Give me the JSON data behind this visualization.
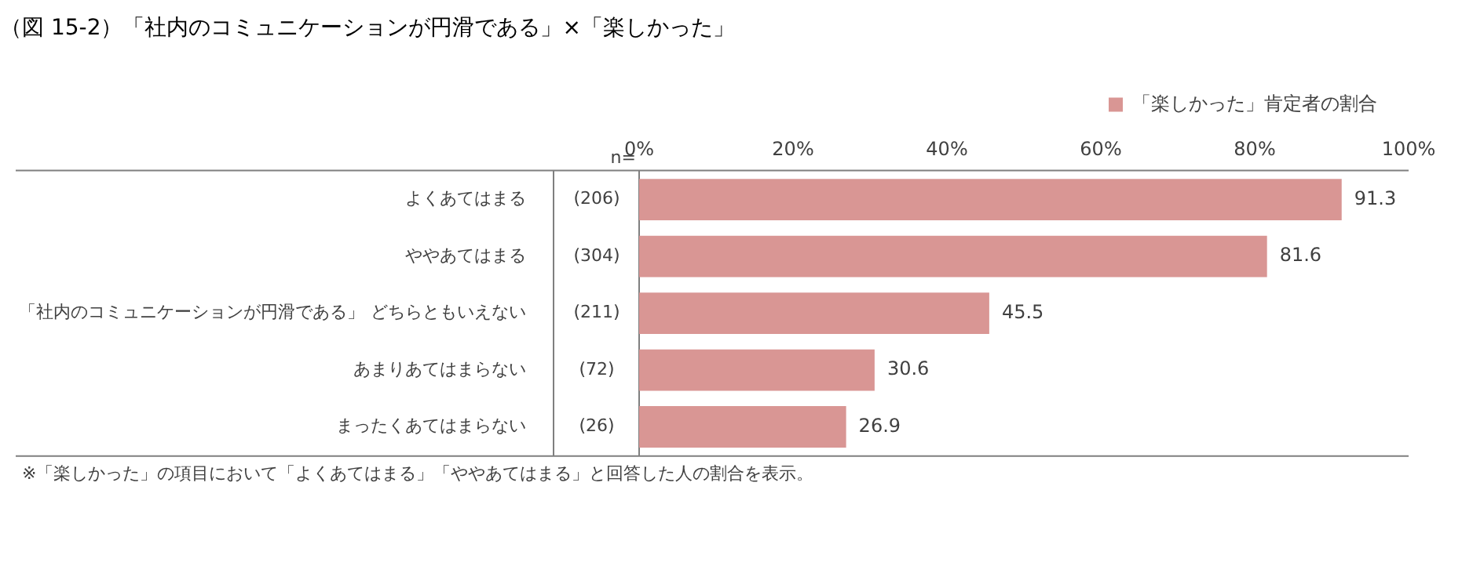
{
  "chart_data": {
    "type": "bar",
    "orientation": "horizontal",
    "title": "（図 15-2）「社内のコミュニケーションが円滑である」×「楽しかった」",
    "ylabel": "「社内のコミュニケーションが円滑である」",
    "categories": [
      "よくあてはまる",
      "ややあてはまる",
      "どちらともいえない",
      "あまりあてはまらない",
      "まったくあてはまらない"
    ],
    "series": [
      {
        "name": "「楽しかった」肯定者の割合",
        "color": "#d99694",
        "values": [
          91.3,
          81.6,
          45.5,
          30.6,
          26.9
        ]
      }
    ],
    "xlim": [
      0,
      100
    ],
    "xticks": [
      {
        "value": 0,
        "label": "0%"
      },
      {
        "value": 20,
        "label": "20%"
      },
      {
        "value": 40,
        "label": "40%"
      },
      {
        "value": 60,
        "label": "60%"
      },
      {
        "value": 80,
        "label": "80%"
      },
      {
        "value": 100,
        "label": "100%"
      }
    ],
    "data_labels": true,
    "legend": "top right",
    "grid": false,
    "annotations": [
      "n=",
      "(206)",
      "(304)",
      "(211)",
      "(72)",
      "(26)",
      "※「楽しかった」の項目において「よくあてはまる」「ややあてはまる」と回答した人の割合を表示。"
    ]
  }
}
